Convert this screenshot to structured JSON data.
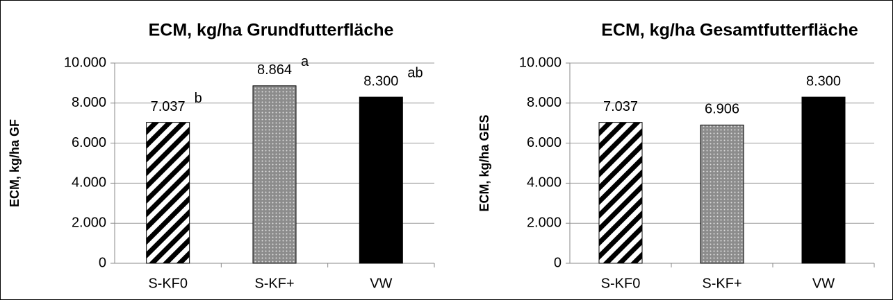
{
  "chart_data": [
    {
      "type": "bar",
      "title": "ECM, kg/ha Grundfutterfläche",
      "y_label": "ECM, kg/ha GF",
      "categories": [
        "S-KF0",
        "S-KF+",
        "VW"
      ],
      "values": [
        7037,
        8864,
        8300
      ],
      "value_labels": [
        "7.037",
        "8.864",
        "8.300"
      ],
      "annotations": [
        "b",
        "a",
        "ab"
      ],
      "bar_styles": [
        "hatch",
        "dots",
        "solid"
      ],
      "color": "#000000",
      "ylim": [
        0,
        10000
      ],
      "yticks": [
        0,
        {
          "value": 2000,
          "label": "2.000"
        },
        {
          "value": 4000,
          "label": "4.000"
        },
        {
          "value": 6000,
          "label": "6.000"
        },
        {
          "value": 8000,
          "label": "8.000"
        },
        {
          "value": 10000,
          "label": "10.000"
        }
      ],
      "grid": true
    },
    {
      "type": "bar",
      "title": "ECM, kg/ha Gesamtfutterfläche",
      "y_label": "ECM, kg/ha GES",
      "categories": [
        "S-KF0",
        "S-KF+",
        "VW"
      ],
      "values": [
        7037,
        6906,
        8300
      ],
      "value_labels": [
        "7.037",
        "6.906",
        "8.300"
      ],
      "bar_styles": [
        "hatch",
        "dots",
        "solid"
      ],
      "color": "#000000",
      "ylim": [
        0,
        10000
      ],
      "yticks": [
        0,
        {
          "value": 2000,
          "label": "2.000"
        },
        {
          "value": 4000,
          "label": "4.000"
        },
        {
          "value": 6000,
          "label": "6.000"
        },
        {
          "value": 8000,
          "label": "8.000"
        },
        {
          "value": 10000,
          "label": "10.000"
        }
      ],
      "grid": true
    }
  ]
}
